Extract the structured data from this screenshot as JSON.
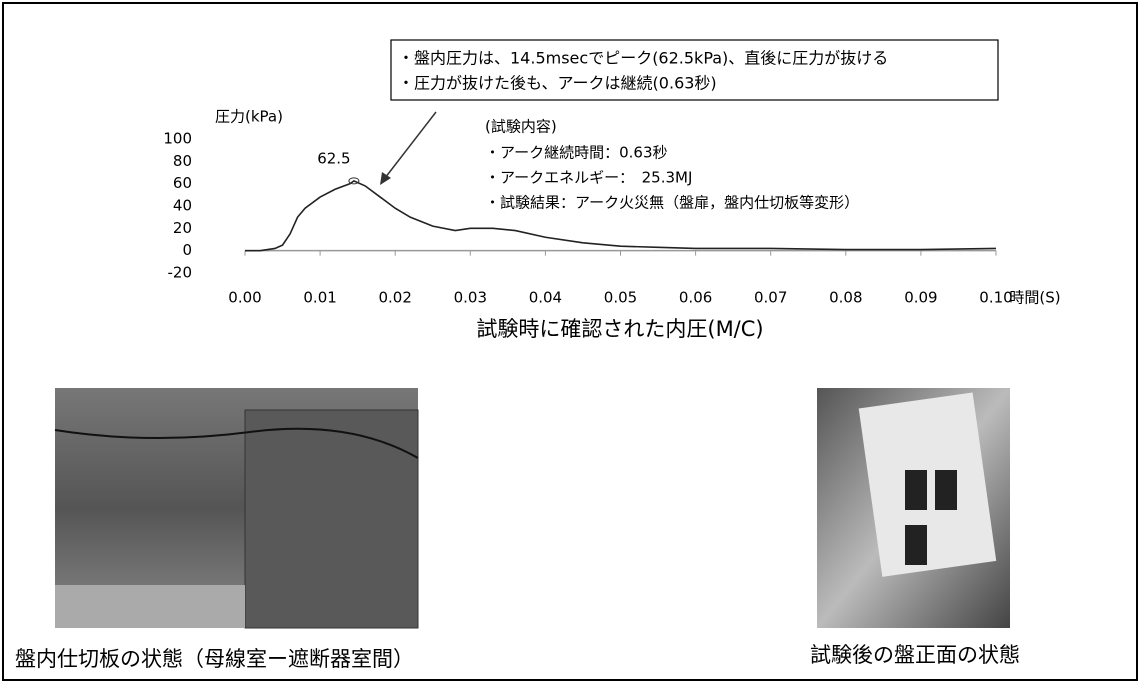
{
  "callout": {
    "lines": [
      "・盤内圧力は、14.5msecでピーク(62.5kPa)、直後に圧力が抜ける",
      "・圧力が抜けた後も、アークは継続(0.63秒)"
    ]
  },
  "test_content": {
    "title": "(試験内容)",
    "lines": [
      "・アーク継続時間：0.63秒",
      "・アークエネルギー：　25.3MJ",
      "・試験結果：アーク火災無（盤扉，盤内仕切板等変形）"
    ]
  },
  "chart_data": {
    "type": "line",
    "caption": "試験時に確認された内圧(M/C)",
    "y_label": "圧力(kPa)",
    "x_label": "時間(S)",
    "color": "#222222",
    "x": [
      0,
      0.002,
      0.004,
      0.005,
      0.006,
      0.007,
      0.008,
      0.01,
      0.012,
      0.014,
      0.0145,
      0.016,
      0.018,
      0.02,
      0.022,
      0.025,
      0.028,
      0.03,
      0.033,
      0.036,
      0.04,
      0.045,
      0.05,
      0.055,
      0.06,
      0.07,
      0.08,
      0.09,
      0.1
    ],
    "values": [
      0,
      0,
      2,
      5,
      15,
      30,
      38,
      48,
      55,
      60,
      62.5,
      58,
      48,
      38,
      30,
      22,
      18,
      20,
      20,
      18,
      12,
      7,
      4,
      3,
      2,
      2,
      1,
      1,
      2
    ],
    "peak": {
      "x": 0.0145,
      "y": 62.5
    },
    "xlim": [
      0,
      0.1
    ],
    "ylim": [
      -20,
      100
    ],
    "xticks": [
      {
        "value": 0,
        "label": "0.00"
      },
      0.01,
      0.02,
      0.03,
      0.04,
      0.05,
      0.06,
      0.07,
      0.08,
      0.09,
      {
        "value": 0.1,
        "label": "0.10"
      }
    ],
    "yticks": [
      -20,
      0,
      20,
      40,
      60,
      80,
      100
    ]
  },
  "photos": {
    "left_caption": "盤内仕切板の状態（母線室ー遮断器室間）",
    "right_caption": "試験後の盤正面の状態"
  }
}
